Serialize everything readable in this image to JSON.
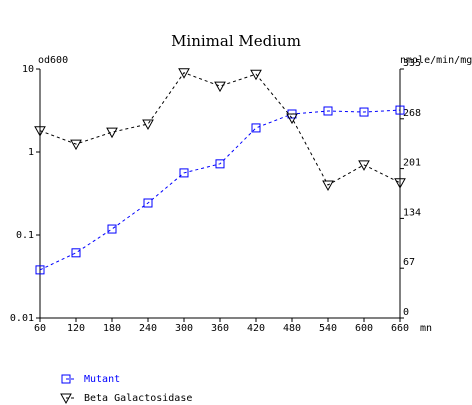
{
  "chart_data": {
    "type": "line",
    "title": "Minimal Medium",
    "y_label": "od600",
    "y2_label": "nmole/min/mg",
    "x_label": "mn",
    "x": [
      60,
      120,
      180,
      240,
      300,
      360,
      420,
      480,
      540,
      600,
      660
    ],
    "xlim": [
      60,
      660
    ],
    "xticks": [
      60,
      120,
      180,
      240,
      300,
      360,
      420,
      480,
      540,
      600,
      660
    ],
    "ylim": [
      0.01,
      10
    ],
    "yticks": [
      0.01,
      0.1,
      1,
      10
    ],
    "y_scale": "log",
    "y2lim": [
      0,
      335
    ],
    "y2ticks": [
      0,
      67,
      134,
      201,
      268,
      335
    ],
    "series": [
      {
        "name": "Mutant",
        "color": "#0000ff",
        "marker": "square",
        "values": [
          0.038,
          0.061,
          0.118,
          0.243,
          0.56,
          0.72,
          1.95,
          2.87,
          3.12,
          3.03,
          3.2
        ]
      },
      {
        "name": "Beta Galactosidase",
        "color": "#000000",
        "marker": "triangle-down",
        "axis": "y2",
        "values": [
          252,
          234,
          250,
          261,
          330,
          312,
          328,
          269,
          179,
          206,
          182
        ]
      }
    ]
  }
}
